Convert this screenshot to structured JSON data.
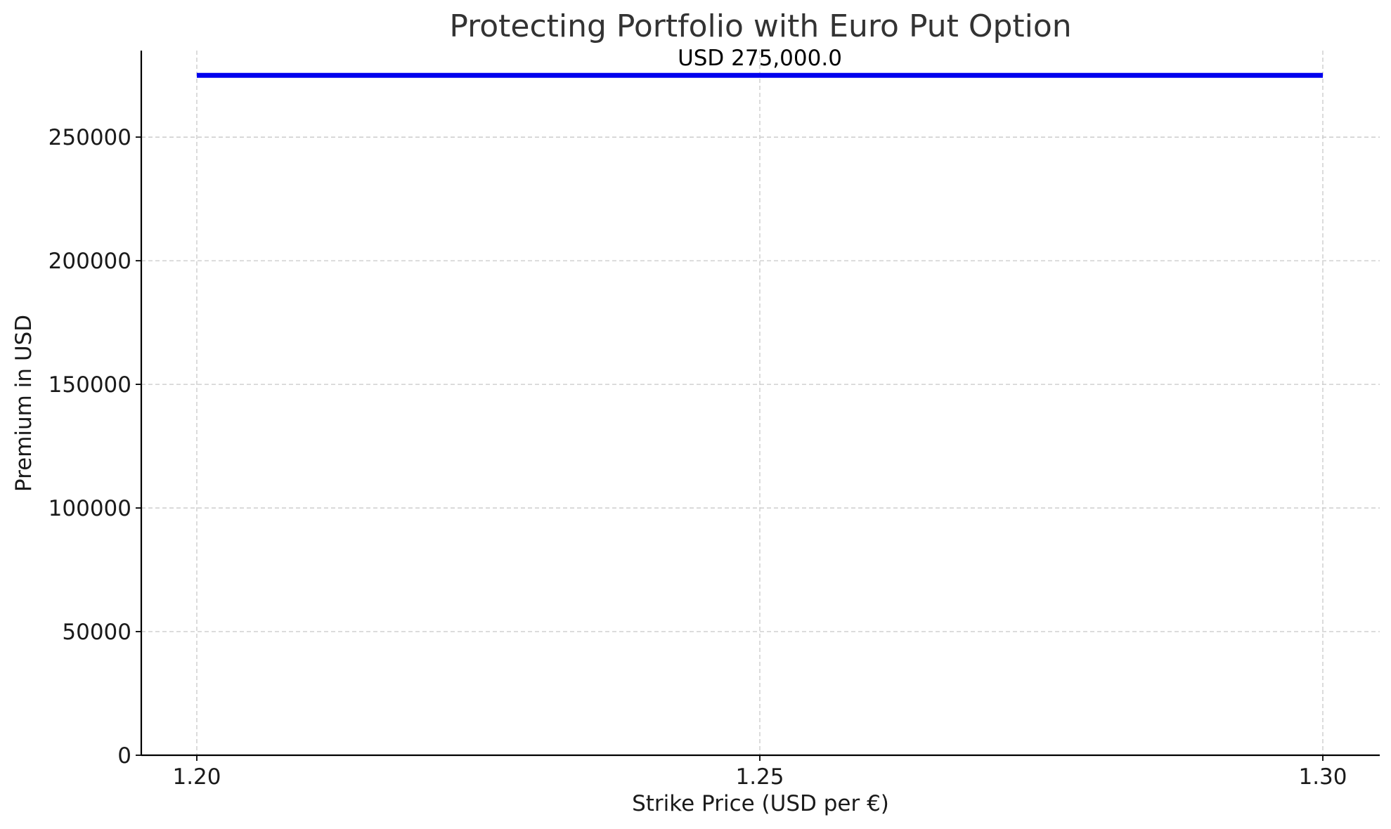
{
  "chart_data": {
    "type": "line",
    "title": "Protecting Portfolio with Euro Put Option",
    "xlabel": "Strike Price (USD per €)",
    "ylabel": "Premium in USD",
    "x": [
      1.2,
      1.3
    ],
    "xlim": [
      1.195,
      1.3
    ],
    "ylim": [
      0,
      285000
    ],
    "xticks": [
      1.2,
      1.25,
      1.3
    ],
    "xtick_labels": [
      "1.20",
      "1.25",
      "1.30"
    ],
    "yticks": [
      0,
      50000,
      100000,
      150000,
      200000,
      250000
    ],
    "ytick_labels": [
      "0",
      "50000",
      "100000",
      "150000",
      "200000",
      "250000"
    ],
    "grid": true,
    "series": [
      {
        "values": [
          275000,
          275000
        ],
        "color": "#0000ee"
      }
    ],
    "annotations": [
      {
        "text": "USD 275,000.0",
        "x": 1.25,
        "y": 275000
      }
    ]
  }
}
